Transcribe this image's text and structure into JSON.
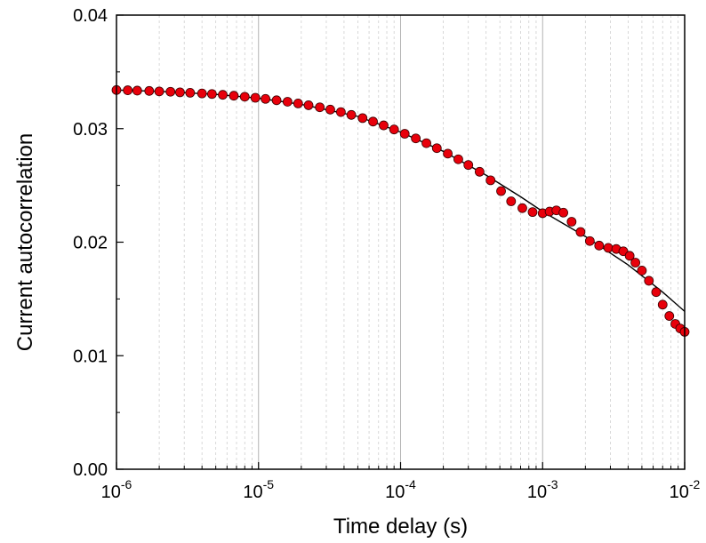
{
  "chart_data": {
    "type": "scatter",
    "title": "",
    "xlabel": "Time delay (s)",
    "ylabel": "Current autocorrelation",
    "xscale": "log",
    "xlim": [
      1e-06,
      0.01
    ],
    "ylim": [
      0.0,
      0.04
    ],
    "x_ticks": [
      {
        "value": 1e-06,
        "base": "10",
        "exp": "-6"
      },
      {
        "value": 1e-05,
        "base": "10",
        "exp": "-5"
      },
      {
        "value": 0.0001,
        "base": "10",
        "exp": "-4"
      },
      {
        "value": 0.001,
        "base": "10",
        "exp": "-3"
      },
      {
        "value": 0.01,
        "base": "10",
        "exp": "-2"
      }
    ],
    "y_ticks": [
      {
        "value": 0.0,
        "label": "0.00"
      },
      {
        "value": 0.01,
        "label": "0.01"
      },
      {
        "value": 0.02,
        "label": "0.02"
      },
      {
        "value": 0.03,
        "label": "0.03"
      },
      {
        "value": 0.04,
        "label": "0.04"
      }
    ],
    "grid": "vertical log gridlines",
    "legend": "none",
    "colors": {
      "marker_fill": "#e8000b",
      "marker_edge": "#3a0000",
      "fit_line": "#000000",
      "grid_major": "#b4b4b4",
      "grid_minor": "#cfcfcf"
    },
    "series": [
      {
        "kind": "markers",
        "points": [
          [
            1e-06,
            0.0334
          ],
          [
            1.2e-06,
            0.03338
          ],
          [
            1.4e-06,
            0.03335
          ],
          [
            1.7e-06,
            0.03332
          ],
          [
            2e-06,
            0.03328
          ],
          [
            2.4e-06,
            0.03325
          ],
          [
            2.8e-06,
            0.0332
          ],
          [
            3.3e-06,
            0.03316
          ],
          [
            4e-06,
            0.0331
          ],
          [
            4.7e-06,
            0.03305
          ],
          [
            5.6e-06,
            0.03298
          ],
          [
            6.7e-06,
            0.0329
          ],
          [
            8e-06,
            0.03281
          ],
          [
            9.5e-06,
            0.03272
          ],
          [
            1.12e-05,
            0.03262
          ],
          [
            1.34e-05,
            0.0325
          ],
          [
            1.6e-05,
            0.03237
          ],
          [
            1.9e-05,
            0.03222
          ],
          [
            2.25e-05,
            0.03206
          ],
          [
            2.7e-05,
            0.03188
          ],
          [
            3.2e-05,
            0.03168
          ],
          [
            3.8e-05,
            0.03146
          ],
          [
            4.5e-05,
            0.03121
          ],
          [
            5.4e-05,
            0.03093
          ],
          [
            6.4e-05,
            0.03062
          ],
          [
            7.6e-05,
            0.03029
          ],
          [
            9e-05,
            0.02993
          ],
          [
            0.000107,
            0.02955
          ],
          [
            0.000128,
            0.02914
          ],
          [
            0.000152,
            0.02872
          ],
          [
            0.00018,
            0.02828
          ],
          [
            0.000215,
            0.0278
          ],
          [
            0.000255,
            0.0273
          ],
          [
            0.0003,
            0.0268
          ],
          [
            0.00036,
            0.0262
          ],
          [
            0.00043,
            0.02545
          ],
          [
            0.00051,
            0.0245
          ],
          [
            0.0006,
            0.0236
          ],
          [
            0.00072,
            0.023
          ],
          [
            0.00085,
            0.02265
          ],
          [
            0.001,
            0.02255
          ],
          [
            0.00112,
            0.0227
          ],
          [
            0.00125,
            0.0228
          ],
          [
            0.0014,
            0.0226
          ],
          [
            0.0016,
            0.0218
          ],
          [
            0.00185,
            0.0209
          ],
          [
            0.00215,
            0.0201
          ],
          [
            0.0025,
            0.0197
          ],
          [
            0.0029,
            0.0195
          ],
          [
            0.0033,
            0.0194
          ],
          [
            0.0037,
            0.0192
          ],
          [
            0.0041,
            0.0188
          ],
          [
            0.0045,
            0.0182
          ],
          [
            0.005,
            0.0175
          ],
          [
            0.0056,
            0.0166
          ],
          [
            0.0063,
            0.0156
          ],
          [
            0.007,
            0.0145
          ],
          [
            0.0078,
            0.0135
          ],
          [
            0.0086,
            0.0128
          ],
          [
            0.0093,
            0.0124
          ],
          [
            0.01,
            0.0121
          ]
        ]
      },
      {
        "kind": "fit-line",
        "points": [
          [
            1e-06,
            0.0334
          ],
          [
            2e-06,
            0.03328
          ],
          [
            5e-06,
            0.03302
          ],
          [
            1e-05,
            0.03268
          ],
          [
            2e-05,
            0.03214
          ],
          [
            5e-05,
            0.03108
          ],
          [
            0.0001,
            0.0297
          ],
          [
            0.0002,
            0.028
          ],
          [
            0.0004,
            0.0259
          ],
          [
            0.0007,
            0.024
          ],
          [
            0.001,
            0.0227
          ],
          [
            0.002,
            0.0205
          ],
          [
            0.004,
            0.018
          ],
          [
            0.007,
            0.0156
          ],
          [
            0.01,
            0.0139
          ]
        ]
      }
    ]
  }
}
